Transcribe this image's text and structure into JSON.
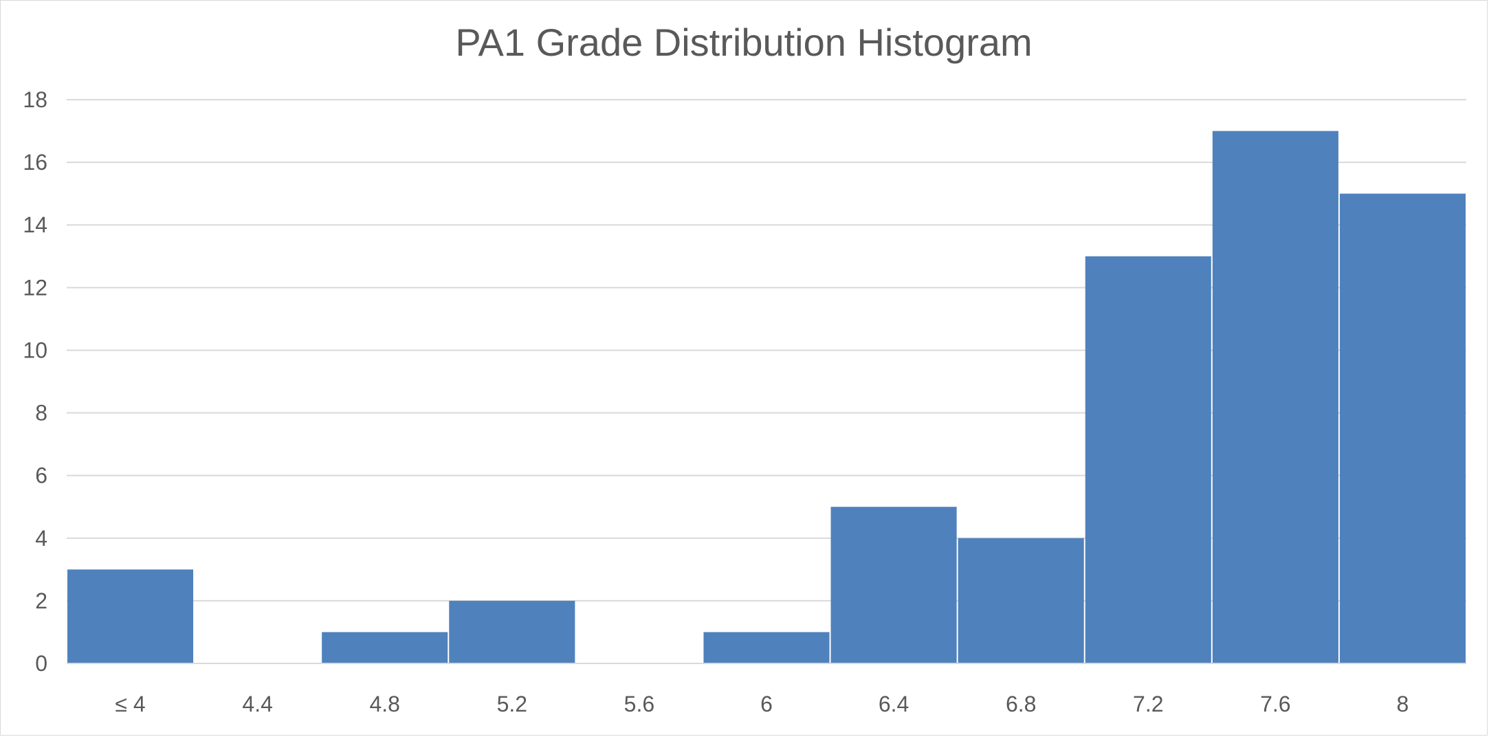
{
  "chart_data": {
    "type": "bar",
    "title": "PA1 Grade Distribution Histogram",
    "xlabel": "",
    "ylabel": "",
    "categories": [
      "≤ 4",
      "4.4",
      "4.8",
      "5.2",
      "5.6",
      "6",
      "6.4",
      "6.8",
      "7.2",
      "7.6",
      "8"
    ],
    "values": [
      3,
      0,
      1,
      2,
      0,
      1,
      5,
      4,
      13,
      17,
      15
    ],
    "ylim": [
      0,
      18
    ],
    "yticks": [
      0,
      2,
      4,
      6,
      8,
      10,
      12,
      14,
      16,
      18
    ],
    "grid": true,
    "legend": "none",
    "colors": {
      "bar": "#4f81bd",
      "grid": "#d9d9d9",
      "text": "#595959"
    }
  }
}
